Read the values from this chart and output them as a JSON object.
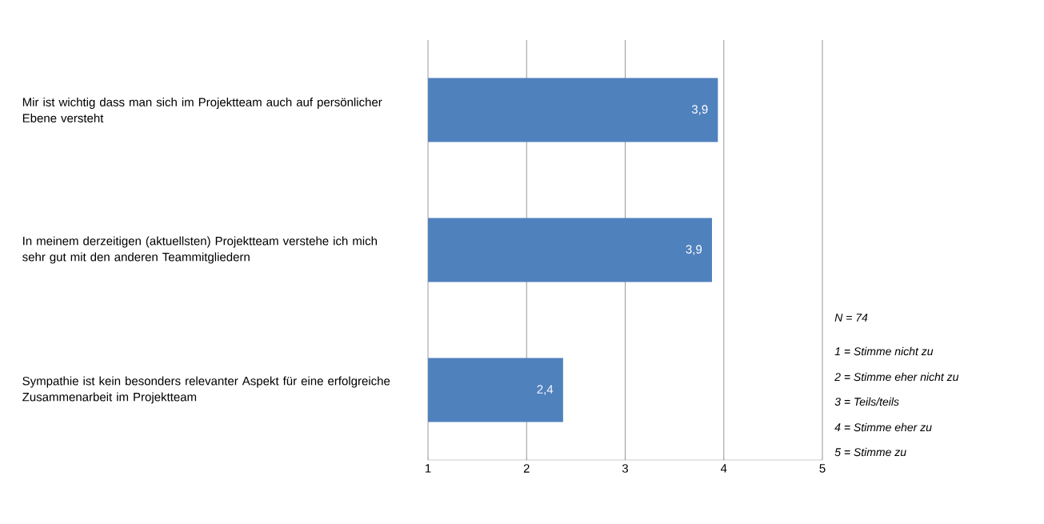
{
  "chart_data": {
    "type": "bar",
    "orientation": "horizontal",
    "categories": [
      "Mir ist wichtig dass man sich im Projektteam auch auf persönlicher Ebene versteht",
      "In meinem derzeitigen (aktuellsten) Projektteam verstehe ich mich sehr gut mit den anderen Teammitgliedern",
      "Sympathie ist kein besonders relevanter Aspekt  für eine erfolgreiche Zusammenarbeit im Projektteam"
    ],
    "values": [
      3.94,
      3.88,
      2.37
    ],
    "value_labels": [
      "3,9",
      "3,9",
      "2,4"
    ],
    "color": "#4f81bd",
    "xlim": [
      1,
      5
    ],
    "xticks": [
      1,
      2,
      3,
      4,
      5
    ],
    "grid": "x",
    "annotations": [
      "*N = 74*",
      "*1 = Stimme nicht zu*",
      "*2 = Stimme eher nicht zu*",
      "*3 = Teils/teils*",
      "*4 = Stimme eher zu*",
      "*5 = Stimme zu*"
    ]
  }
}
